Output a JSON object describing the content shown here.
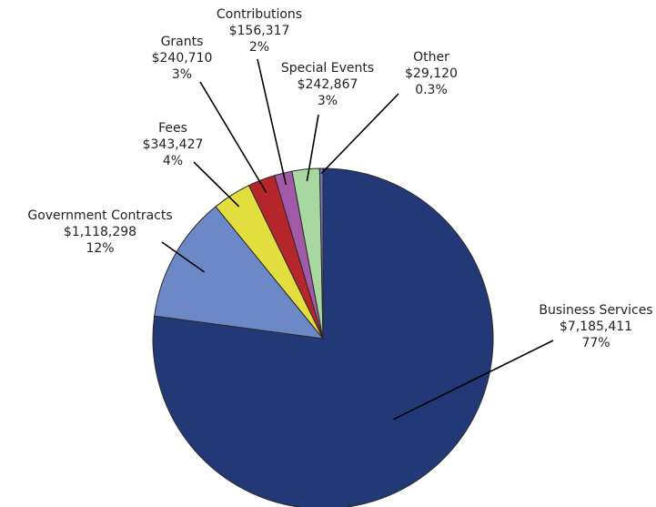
{
  "chart_data": {
    "type": "pie",
    "title": "",
    "start": "12 o'clock",
    "direction": "clockwise",
    "legend": "none",
    "slices": [
      {
        "name": "Business Services",
        "value": 7185411,
        "value_label": "$7,185,411",
        "percent_label": "77%",
        "color": "#223877"
      },
      {
        "name": "Government Contracts",
        "value": 1118298,
        "value_label": "$1,118,298",
        "percent_label": "12%",
        "color": "#6d88c6"
      },
      {
        "name": "Fees",
        "value": 343427,
        "value_label": "$343,427",
        "percent_label": "4%",
        "color": "#e2de3d"
      },
      {
        "name": "Grants",
        "value": 240710,
        "value_label": "$240,710",
        "percent_label": "3%",
        "color": "#b5262a"
      },
      {
        "name": "Contributions",
        "value": 156317,
        "value_label": "$156,317",
        "percent_label": "2%",
        "color": "#a259a8"
      },
      {
        "name": "Special Events",
        "value": 242867,
        "value_label": "$242,867",
        "percent_label": "3%",
        "color": "#a6d8a0"
      },
      {
        "name": "Other",
        "value": 29120,
        "value_label": "$29,120",
        "percent_label": "0.3%",
        "color": "#7478bd"
      }
    ]
  }
}
